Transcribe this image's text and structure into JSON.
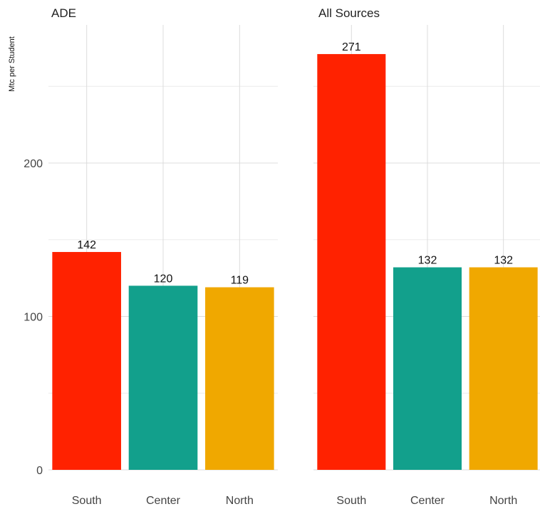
{
  "ylabel": "Mtc per Student",
  "y_ticks": [
    "0",
    "100",
    "200"
  ],
  "colors": {
    "South": "#ff2200",
    "Center": "#12a08c",
    "North": "#f0a800"
  },
  "chart_data": [
    {
      "type": "bar",
      "title": "ADE",
      "categories": [
        "South",
        "Center",
        "North"
      ],
      "values": [
        142,
        120,
        119
      ],
      "labels": [
        "142",
        "120",
        "119"
      ],
      "ylabel": "Mtc per Student",
      "ylim": [
        0,
        290
      ],
      "y_ticks": [
        0,
        100,
        200
      ],
      "grid": true
    },
    {
      "type": "bar",
      "title": "All Sources",
      "categories": [
        "South",
        "Center",
        "North"
      ],
      "values": [
        271,
        132,
        132
      ],
      "labels": [
        "271",
        "132",
        "132"
      ],
      "ylabel": "",
      "ylim": [
        0,
        290
      ],
      "y_ticks": [
        0,
        100,
        200
      ],
      "grid": true
    }
  ]
}
